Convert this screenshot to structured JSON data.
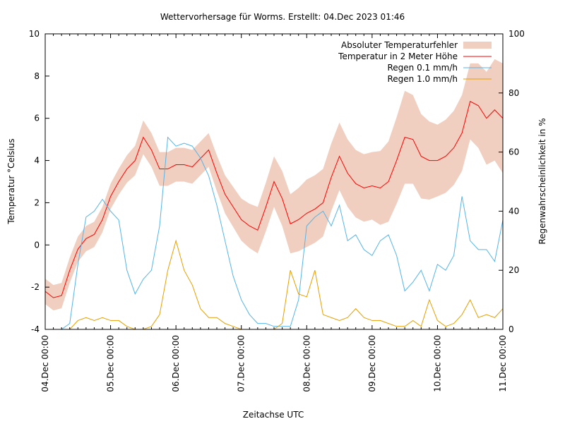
{
  "chart_data": {
    "type": "line",
    "title": "Wettervorhersage für Worms. Erstellt: 04.Dec 2023 01:46",
    "xlabel": "Zeitachse UTC",
    "ylabel": "Temperatur °Celsius",
    "y2label": "Regenwahrscheinlichkeit in %",
    "ylim": [
      -4,
      10
    ],
    "y2lim": [
      0,
      100
    ],
    "yticks": [
      "-4",
      "-2",
      "0",
      "2",
      "4",
      "6",
      "8",
      "10"
    ],
    "y2ticks": [
      "0",
      "20",
      "40",
      "60",
      "80",
      "100"
    ],
    "xticks": [
      "04.Dec 00:00",
      "05.Dec 00:00",
      "06.Dec 00:00",
      "07.Dec 00:00",
      "08.Dec 00:00",
      "09.Dec 00:00",
      "10.Dec 00:00",
      "11.Dec 00:00"
    ],
    "grid": false,
    "legend_position": "top-right",
    "x": [
      "2023-12-04 00:00",
      "2023-12-04 03:00",
      "2023-12-04 06:00",
      "2023-12-04 09:00",
      "2023-12-04 12:00",
      "2023-12-04 15:00",
      "2023-12-04 18:00",
      "2023-12-04 21:00",
      "2023-12-05 00:00",
      "2023-12-05 03:00",
      "2023-12-05 06:00",
      "2023-12-05 09:00",
      "2023-12-05 12:00",
      "2023-12-05 15:00",
      "2023-12-05 18:00",
      "2023-12-05 21:00",
      "2023-12-06 00:00",
      "2023-12-06 03:00",
      "2023-12-06 06:00",
      "2023-12-06 09:00",
      "2023-12-06 12:00",
      "2023-12-06 15:00",
      "2023-12-06 18:00",
      "2023-12-06 21:00",
      "2023-12-07 00:00",
      "2023-12-07 03:00",
      "2023-12-07 06:00",
      "2023-12-07 09:00",
      "2023-12-07 12:00",
      "2023-12-07 15:00",
      "2023-12-07 18:00",
      "2023-12-07 21:00",
      "2023-12-08 00:00",
      "2023-12-08 03:00",
      "2023-12-08 06:00",
      "2023-12-08 09:00",
      "2023-12-08 12:00",
      "2023-12-08 15:00",
      "2023-12-08 18:00",
      "2023-12-08 21:00",
      "2023-12-09 00:00",
      "2023-12-09 03:00",
      "2023-12-09 06:00",
      "2023-12-09 09:00",
      "2023-12-09 12:00",
      "2023-12-09 15:00",
      "2023-12-09 18:00",
      "2023-12-09 21:00",
      "2023-12-10 00:00",
      "2023-12-10 03:00",
      "2023-12-10 06:00",
      "2023-12-10 09:00",
      "2023-12-10 12:00",
      "2023-12-10 15:00",
      "2023-12-10 18:00",
      "2023-12-10 21:00",
      "2023-12-11 00:00"
    ],
    "series": [
      {
        "name": "Absoluter Temperaturfehler",
        "kind": "band",
        "axis": "y",
        "color": "#f0cfc0",
        "values": [
          0.6,
          0.6,
          0.6,
          0.6,
          0.6,
          0.6,
          0.6,
          0.6,
          0.6,
          0.62,
          0.65,
          0.7,
          0.8,
          0.8,
          0.8,
          0.8,
          0.8,
          0.8,
          0.8,
          0.8,
          0.8,
          0.85,
          0.9,
          0.95,
          1.0,
          1.05,
          1.1,
          1.15,
          1.2,
          1.3,
          1.4,
          1.5,
          1.6,
          1.6,
          1.6,
          1.6,
          1.6,
          1.6,
          1.6,
          1.6,
          1.6,
          1.75,
          1.9,
          2.05,
          2.2,
          2.1,
          2.0,
          1.85,
          1.7,
          1.73,
          1.76,
          1.8,
          1.8,
          2.0,
          2.2,
          2.4,
          2.6
        ]
      },
      {
        "name": "Temperatur in 2 Meter Höhe",
        "kind": "line",
        "axis": "y",
        "color": "#ff0000",
        "values": [
          -2.2,
          -2.5,
          -2.4,
          -1.2,
          -0.2,
          0.3,
          0.5,
          1.2,
          2.3,
          3.0,
          3.6,
          4.0,
          5.1,
          4.5,
          3.6,
          3.6,
          3.8,
          3.8,
          3.7,
          4.1,
          4.5,
          3.4,
          2.4,
          1.8,
          1.2,
          0.9,
          0.7,
          1.8,
          3.0,
          2.2,
          1.0,
          1.2,
          1.5,
          1.7,
          2.0,
          3.2,
          4.2,
          3.4,
          2.9,
          2.7,
          2.8,
          2.7,
          3.0,
          4.0,
          5.1,
          5.0,
          4.2,
          4.0,
          4.0,
          4.2,
          4.6,
          5.3,
          6.8,
          6.6,
          6.0,
          6.4,
          6.0
        ]
      },
      {
        "name": "Regen 0.1 mm/h",
        "kind": "line",
        "axis": "y2",
        "color": "#56b4e9",
        "values": [
          0,
          0,
          0,
          2,
          22,
          38,
          40,
          44,
          40,
          37,
          20,
          12,
          17,
          20,
          35,
          65,
          62,
          63,
          62,
          58,
          52,
          42,
          30,
          18,
          10,
          5,
          2,
          2,
          1,
          1,
          1,
          10,
          35,
          38,
          40,
          35,
          42,
          30,
          32,
          27,
          25,
          30,
          32,
          25,
          13,
          16,
          20,
          13,
          22,
          20,
          25,
          45,
          30,
          27,
          27,
          23,
          37
        ]
      },
      {
        "name": "Regen 1.0 mm/h",
        "kind": "line",
        "axis": "y2",
        "color": "#e69f00",
        "values": [
          0,
          0,
          0,
          0,
          3,
          4,
          3,
          4,
          3,
          3,
          1,
          0,
          0,
          1,
          5,
          20,
          30,
          20,
          15,
          7,
          4,
          4,
          2,
          1,
          0,
          0,
          0,
          0,
          0,
          2,
          20,
          12,
          11,
          20,
          5,
          4,
          3,
          4,
          7,
          4,
          3,
          3,
          2,
          1,
          1,
          3,
          1,
          10,
          3,
          1,
          2,
          5,
          10,
          4,
          5,
          4,
          7
        ]
      }
    ]
  }
}
